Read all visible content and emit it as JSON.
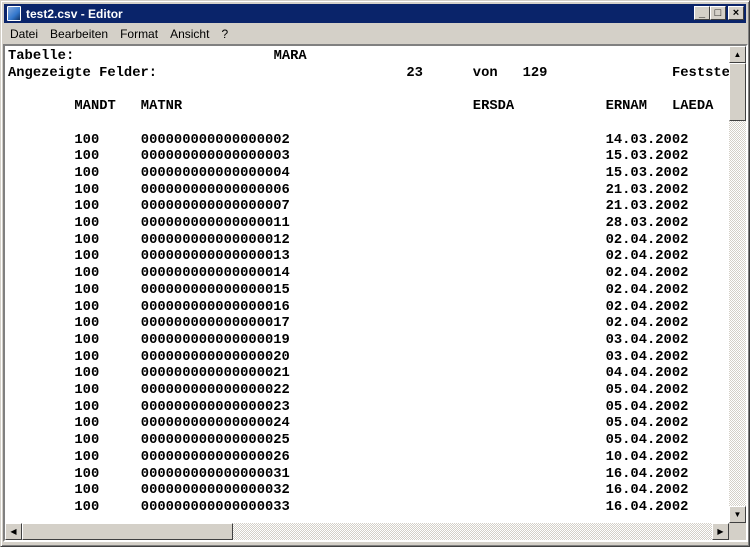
{
  "window": {
    "title": "test2.csv - Editor",
    "minimize": "_",
    "maximize": "□",
    "close": "×"
  },
  "menu": [
    {
      "label": "Datei"
    },
    {
      "label": "Bearbeiten"
    },
    {
      "label": "Format"
    },
    {
      "label": "Ansicht"
    },
    {
      "label": "?"
    }
  ],
  "header_lines": [
    [
      {
        "col": 0,
        "text": "Tabelle:"
      },
      {
        "col": 32,
        "text": "MARA"
      }
    ],
    [
      {
        "col": 0,
        "text": "Angezeigte Felder:"
      },
      {
        "col": 48,
        "text": "23"
      },
      {
        "col": 56,
        "text": "von"
      },
      {
        "col": 62,
        "text": "129"
      },
      {
        "col": 80,
        "text": "Festste"
      }
    ]
  ],
  "columns": [
    {
      "col": 8,
      "text": "MANDT"
    },
    {
      "col": 16,
      "text": "MATNR"
    },
    {
      "col": 56,
      "text": "ERSDA"
    },
    {
      "col": 72,
      "text": "ERNAM"
    },
    {
      "col": 80,
      "text": "LAEDA"
    }
  ],
  "rows": [
    [
      "100",
      "000000000000000002",
      "14.03.2002"
    ],
    [
      "100",
      "000000000000000003",
      "15.03.2002"
    ],
    [
      "100",
      "000000000000000004",
      "15.03.2002"
    ],
    [
      "100",
      "000000000000000006",
      "21.03.2002"
    ],
    [
      "100",
      "000000000000000007",
      "21.03.2002"
    ],
    [
      "100",
      "000000000000000011",
      "28.03.2002"
    ],
    [
      "100",
      "000000000000000012",
      "02.04.2002"
    ],
    [
      "100",
      "000000000000000013",
      "02.04.2002"
    ],
    [
      "100",
      "000000000000000014",
      "02.04.2002"
    ],
    [
      "100",
      "000000000000000015",
      "02.04.2002"
    ],
    [
      "100",
      "000000000000000016",
      "02.04.2002"
    ],
    [
      "100",
      "000000000000000017",
      "02.04.2002"
    ],
    [
      "100",
      "000000000000000019",
      "03.04.2002"
    ],
    [
      "100",
      "000000000000000020",
      "03.04.2002"
    ],
    [
      "100",
      "000000000000000021",
      "04.04.2002"
    ],
    [
      "100",
      "000000000000000022",
      "05.04.2002"
    ],
    [
      "100",
      "000000000000000023",
      "05.04.2002"
    ],
    [
      "100",
      "000000000000000024",
      "05.04.2002"
    ],
    [
      "100",
      "000000000000000025",
      "05.04.2002"
    ],
    [
      "100",
      "000000000000000026",
      "10.04.2002"
    ],
    [
      "100",
      "000000000000000031",
      "16.04.2002"
    ],
    [
      "100",
      "000000000000000032",
      "16.04.2002"
    ],
    [
      "100",
      "000000000000000033",
      "16.04.2002"
    ]
  ],
  "row_cols": [
    8,
    16,
    72
  ]
}
